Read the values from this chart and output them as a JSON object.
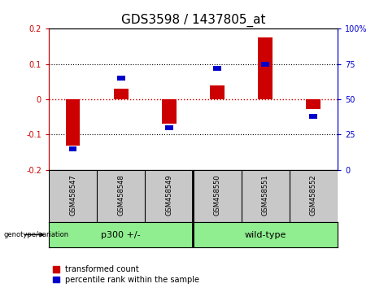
{
  "title": "GDS3598 / 1437805_at",
  "samples": [
    "GSM458547",
    "GSM458548",
    "GSM458549",
    "GSM458550",
    "GSM458551",
    "GSM458552"
  ],
  "red_bars": [
    -0.13,
    0.03,
    -0.07,
    0.04,
    0.175,
    -0.028
  ],
  "blue_percentiles": [
    15,
    65,
    30,
    72,
    75,
    38
  ],
  "ylim_left": [
    -0.2,
    0.2
  ],
  "ylim_right": [
    0,
    100
  ],
  "group1_samples": [
    0,
    1,
    2
  ],
  "group1_label": "p300 +/-",
  "group2_samples": [
    3,
    4,
    5
  ],
  "group2_label": "wild-type",
  "group_color": "#90EE90",
  "sample_row_color": "#c8c8c8",
  "bar_color": "#cc0000",
  "dot_color": "#0000cc",
  "zero_line_color": "#cc0000",
  "background_color": "#ffffff",
  "plot_bg_color": "#ffffff",
  "title_fontsize": 11,
  "tick_fontsize": 7,
  "sample_fontsize": 6,
  "group_fontsize": 8,
  "legend_fontsize": 7,
  "bar_width": 0.3
}
